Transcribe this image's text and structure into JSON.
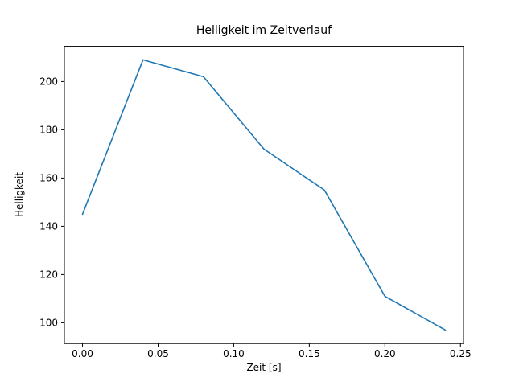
{
  "chart_data": {
    "type": "line",
    "title": "Helligkeit im Zeitverlauf",
    "xlabel": "Zeit [s]",
    "ylabel": "Helligkeit",
    "x": [
      0.0,
      0.04,
      0.08,
      0.12,
      0.16,
      0.2,
      0.24
    ],
    "y": [
      145,
      209,
      202,
      172,
      155,
      111,
      97
    ],
    "series": [
      {
        "name": "Helligkeit",
        "x": [
          0.0,
          0.04,
          0.08,
          0.12,
          0.16,
          0.2,
          0.24
        ],
        "y": [
          145,
          209,
          202,
          172,
          155,
          111,
          97
        ]
      }
    ],
    "xlim": [
      -0.012,
      0.252
    ],
    "ylim": [
      91.4,
      214.6
    ],
    "x_ticks": [
      {
        "value": 0.0,
        "label": "0.00"
      },
      {
        "value": 0.05,
        "label": "0.05"
      },
      {
        "value": 0.1,
        "label": "0.10"
      },
      {
        "value": 0.15,
        "label": "0.15"
      },
      {
        "value": 0.2,
        "label": "0.20"
      },
      {
        "value": 0.25,
        "label": "0.25"
      }
    ],
    "y_ticks": [
      {
        "value": 100,
        "label": "100"
      },
      {
        "value": 120,
        "label": "120"
      },
      {
        "value": 140,
        "label": "140"
      },
      {
        "value": 160,
        "label": "160"
      },
      {
        "value": 180,
        "label": "180"
      },
      {
        "value": 200,
        "label": "200"
      }
    ],
    "line_color": "#1f77b4",
    "spine_color": "#000000",
    "grid": false,
    "legend": null
  }
}
